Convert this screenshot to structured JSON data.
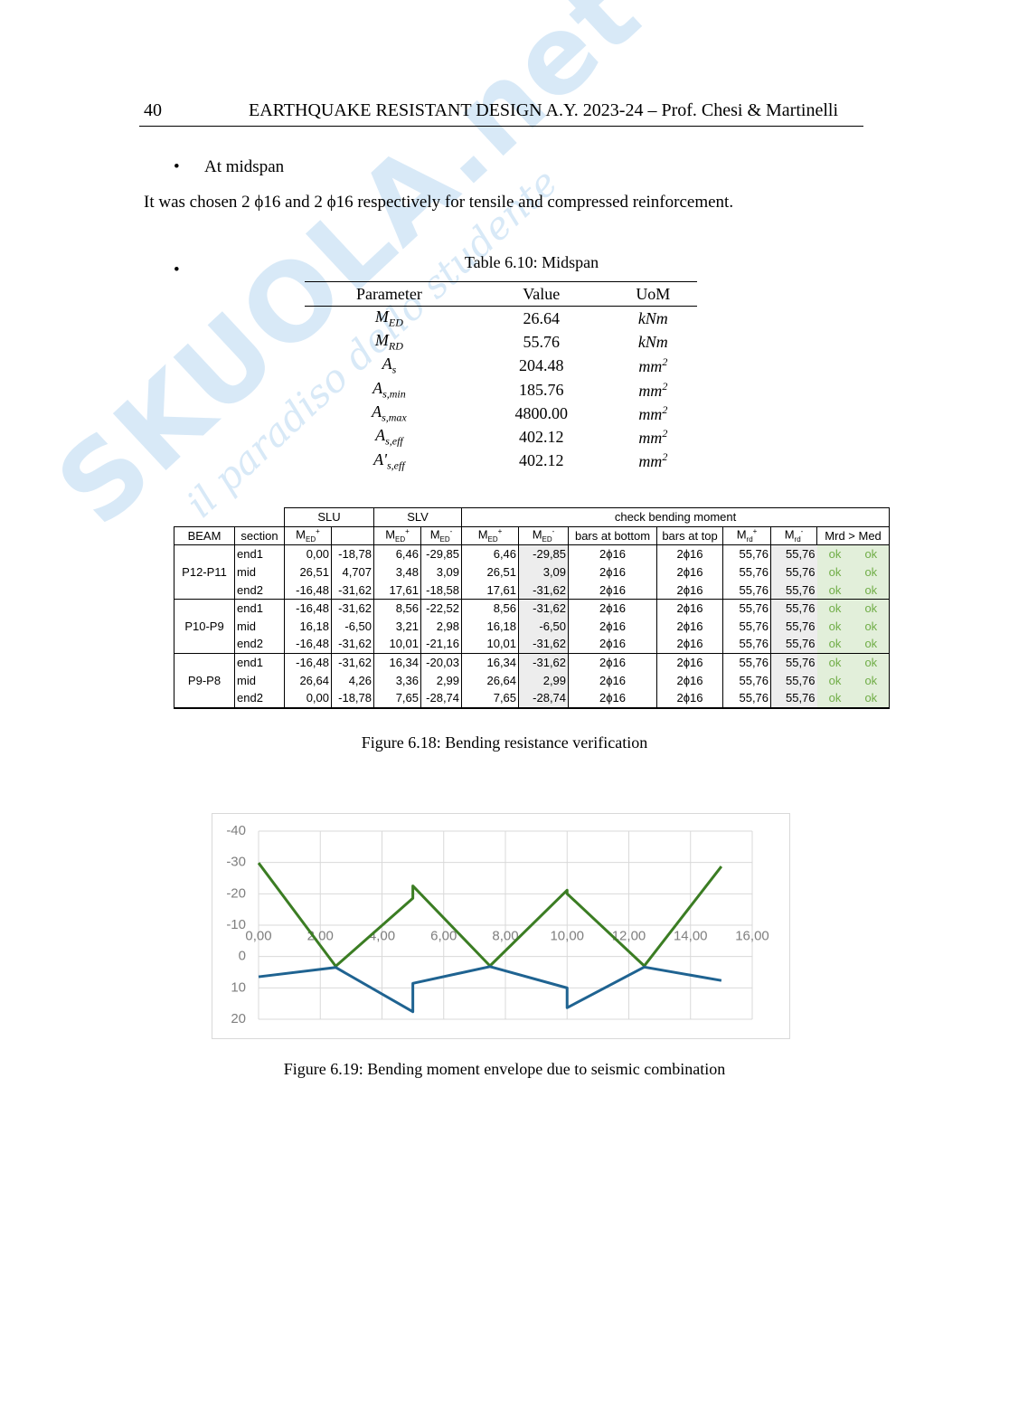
{
  "watermark": {
    "logo": "SKUOLA.net",
    "tagline": "il paradiso dello studente"
  },
  "header": {
    "page_number": "40",
    "title": "EARTHQUAKE RESISTANT DESIGN A.Y. 2023-24 – Prof. Chesi & Martinelli"
  },
  "bullet": "At midspan",
  "paragraph": "It was chosen 2 ϕ16 and 2 ϕ16 respectively for tensile and compressed reinforcement.",
  "table1": {
    "caption": "Table 6.10: Midspan",
    "headers": [
      "Parameter",
      "Value",
      "UoM"
    ],
    "rows": [
      {
        "parameter": {
          "symbol": "M",
          "sub": "ED"
        },
        "value": "26.64",
        "unit": {
          "base": "kNm"
        }
      },
      {
        "parameter": {
          "symbol": "M",
          "sub": "RD"
        },
        "value": "55.76",
        "unit": {
          "base": "kNm"
        }
      },
      {
        "parameter": {
          "symbol": "A",
          "sub": "s"
        },
        "value": "204.48",
        "unit": {
          "base": "mm",
          "sup": "2"
        }
      },
      {
        "parameter": {
          "symbol": "A",
          "sub": "s,min"
        },
        "value": "185.76",
        "unit": {
          "base": "mm",
          "sup": "2"
        }
      },
      {
        "parameter": {
          "symbol": "A",
          "sub": "s,max"
        },
        "value": "4800.00",
        "unit": {
          "base": "mm",
          "sup": "2"
        }
      },
      {
        "parameter": {
          "symbol": "A",
          "sub": "s,eff"
        },
        "value": "402.12",
        "unit": {
          "base": "mm",
          "sup": "2"
        }
      },
      {
        "parameter": {
          "symbol": "A'",
          "sub": "s,eff"
        },
        "value": "402.12",
        "unit": {
          "base": "mm",
          "sup": "2"
        }
      }
    ]
  },
  "table2": {
    "caption": "Figure 6.18: Bending resistance verification",
    "groups": [
      "SLU",
      "SLV",
      "check bending moment"
    ],
    "columns": [
      "BEAM",
      "section",
      {
        "base": "M",
        "sub": "ED",
        "sup": "+"
      },
      null,
      {
        "base": "M",
        "sub": "ED",
        "sup": "+"
      },
      {
        "base": "M",
        "sub": "ED",
        "sup": "-"
      },
      {
        "base": "M",
        "sub": "ED",
        "sup": "+"
      },
      {
        "base": "M",
        "sub": "ED",
        "sup": "-"
      },
      "bars at bottom",
      "bars at top",
      {
        "base": "M",
        "sub": "rd",
        "sup": "+"
      },
      {
        "base": "M",
        "sub": "rd",
        "sup": "-"
      },
      "Mrd > Med"
    ],
    "beams": [
      {
        "beam": "P12-P11",
        "sections": [
          {
            "section": "end1",
            "cells": [
              "0,00",
              "-18,78",
              "6,46",
              "-29,85",
              "6,46",
              "-29,85",
              "2ϕ16",
              "2ϕ16",
              "55,76",
              "55,76",
              "ok",
              "ok"
            ]
          },
          {
            "section": "mid",
            "cells": [
              "26,51",
              "4,707",
              "3,48",
              "3,09",
              "26,51",
              "3,09",
              "2ϕ16",
              "2ϕ16",
              "55,76",
              "55,76",
              "ok",
              "ok"
            ]
          },
          {
            "section": "end2",
            "cells": [
              "-16,48",
              "-31,62",
              "17,61",
              "-18,58",
              "17,61",
              "-31,62",
              "2ϕ16",
              "2ϕ16",
              "55,76",
              "55,76",
              "ok",
              "ok"
            ]
          }
        ]
      },
      {
        "beam": "P10-P9",
        "sections": [
          {
            "section": "end1",
            "cells": [
              "-16,48",
              "-31,62",
              "8,56",
              "-22,52",
              "8,56",
              "-31,62",
              "2ϕ16",
              "2ϕ16",
              "55,76",
              "55,76",
              "ok",
              "ok"
            ]
          },
          {
            "section": "mid",
            "cells": [
              "16,18",
              "-6,50",
              "3,21",
              "2,98",
              "16,18",
              "-6,50",
              "2ϕ16",
              "2ϕ16",
              "55,76",
              "55,76",
              "ok",
              "ok"
            ]
          },
          {
            "section": "end2",
            "cells": [
              "-16,48",
              "-31,62",
              "10,01",
              "-21,16",
              "10,01",
              "-31,62",
              "2ϕ16",
              "2ϕ16",
              "55,76",
              "55,76",
              "ok",
              "ok"
            ]
          }
        ]
      },
      {
        "beam": "P9-P8",
        "sections": [
          {
            "section": "end1",
            "cells": [
              "-16,48",
              "-31,62",
              "16,34",
              "-20,03",
              "16,34",
              "-31,62",
              "2ϕ16",
              "2ϕ16",
              "55,76",
              "55,76",
              "ok",
              "ok"
            ]
          },
          {
            "section": "mid",
            "cells": [
              "26,64",
              "4,26",
              "3,36",
              "2,99",
              "26,64",
              "2,99",
              "2ϕ16",
              "2ϕ16",
              "55,76",
              "55,76",
              "ok",
              "ok"
            ]
          },
          {
            "section": "end2",
            "cells": [
              "0,00",
              "-18,78",
              "7,65",
              "-28,74",
              "7,65",
              "-28,74",
              "2ϕ16",
              "2ϕ16",
              "55,76",
              "55,76",
              "ok",
              "ok"
            ]
          }
        ]
      }
    ]
  },
  "chart_data": {
    "type": "line",
    "caption": "Figure 6.19: Bending moment envelope due to seismic combination",
    "xlim": [
      0,
      16
    ],
    "ylim": [
      -40,
      20
    ],
    "y_reversed": true,
    "grid": true,
    "xticks": [
      {
        "value": 0,
        "label": "0,00"
      },
      {
        "value": 2,
        "label": "2,00"
      },
      {
        "value": 4,
        "label": "4,00"
      },
      {
        "value": 6,
        "label": "6,00"
      },
      {
        "value": 8,
        "label": "8,00"
      },
      {
        "value": 10,
        "label": "10,00"
      },
      {
        "value": 12,
        "label": "12,00"
      },
      {
        "value": 14,
        "label": "14,00"
      },
      {
        "value": 16,
        "label": "16,00"
      }
    ],
    "yticks": [
      -40,
      -30,
      -20,
      -10,
      0,
      10,
      20
    ],
    "series": [
      {
        "color": "#3b7d23",
        "x": [
          0,
          2.5,
          5,
          5,
          7.5,
          10,
          10,
          12.5,
          15
        ],
        "values": [
          -29.85,
          3.09,
          -18.58,
          -22.52,
          2.98,
          -21.16,
          -20.03,
          2.99,
          -28.74
        ]
      },
      {
        "color": "#1f6391",
        "x": [
          0,
          2.5,
          5,
          5,
          7.5,
          10,
          10,
          12.5,
          15
        ],
        "values": [
          6.46,
          3.48,
          17.61,
          8.56,
          3.21,
          10.01,
          16.34,
          3.36,
          7.65
        ]
      }
    ]
  }
}
